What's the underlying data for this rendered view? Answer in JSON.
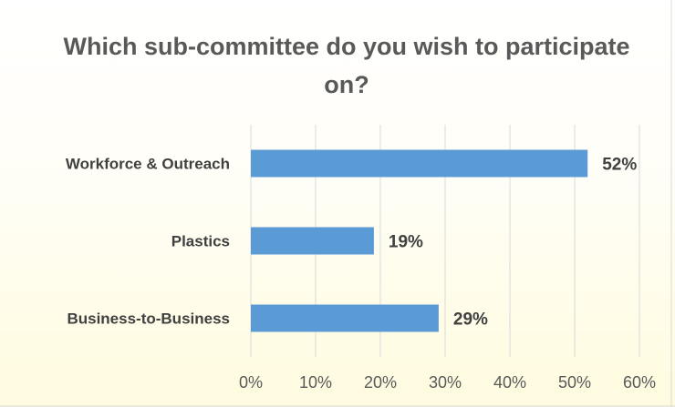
{
  "colors": {
    "bar": "#5B9BD5",
    "gridline": "#D9D9D9",
    "background_top": "#FFFFFF",
    "background_bottom": "#FFFBDF"
  },
  "chart_data": {
    "type": "bar",
    "orientation": "horizontal",
    "title": "Which sub-committee do you wish to participate on?",
    "categories": [
      "Workforce & Outreach",
      "Plastics",
      "Business-to-Business"
    ],
    "values": [
      52,
      19,
      29
    ],
    "data_labels": [
      "52%",
      "19%",
      "29%"
    ],
    "xlim": [
      0,
      60
    ],
    "x_ticks": [
      0,
      10,
      20,
      30,
      40,
      50,
      60
    ],
    "x_tick_labels": [
      "0%",
      "10%",
      "20%",
      "30%",
      "40%",
      "50%",
      "60%"
    ],
    "xlabel": "",
    "ylabel": "",
    "grid": true,
    "legend": "none"
  }
}
